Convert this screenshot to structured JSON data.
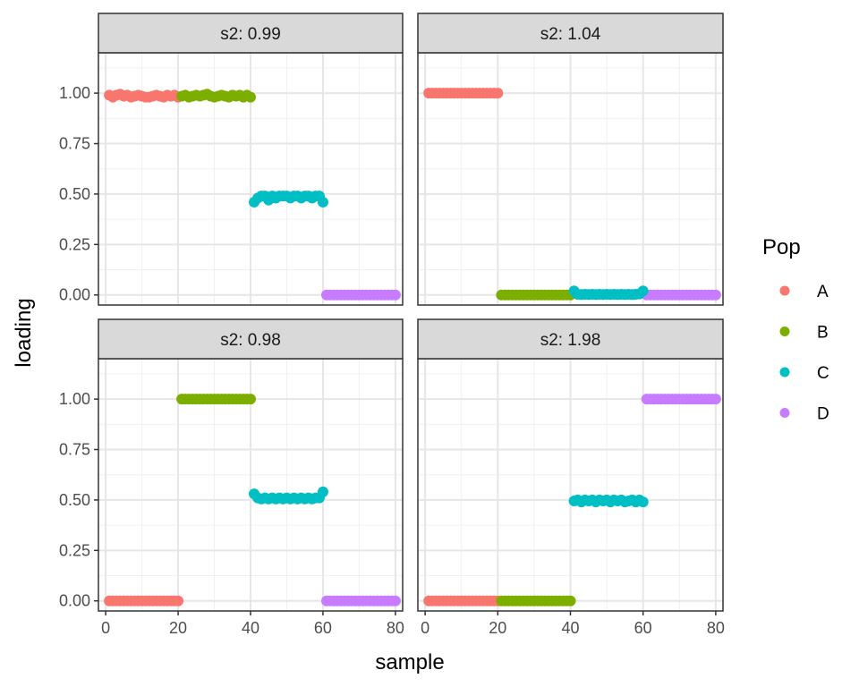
{
  "chart_data": {
    "type": "scatter",
    "xlabel": "sample",
    "ylabel": "loading",
    "xlim": [
      -2,
      82
    ],
    "ylim": [
      -0.05,
      1.2
    ],
    "x_ticks": [
      0,
      20,
      40,
      60,
      80
    ],
    "x_tick_labels": [
      "0",
      "20",
      "40",
      "60",
      "80"
    ],
    "y_ticks": [
      0,
      0.25,
      0.5,
      0.75,
      1.0
    ],
    "y_tick_labels": [
      "0.00",
      "0.25",
      "0.50",
      "0.75",
      "1.00"
    ],
    "legend": {
      "title": "Pop",
      "position": "right",
      "entries": [
        {
          "label": "A",
          "color": "#F8766D"
        },
        {
          "label": "B",
          "color": "#7CAE00"
        },
        {
          "label": "C",
          "color": "#00BFC4"
        },
        {
          "label": "D",
          "color": "#C77CFF"
        }
      ]
    },
    "panels": [
      {
        "strip": "s2: 0.99",
        "series": [
          {
            "name": "A",
            "x_start": 1,
            "x_end": 20,
            "values": [
              0.99,
              0.98,
              0.99,
              0.995,
              0.985,
              0.99,
              0.98,
              0.985,
              0.99,
              0.985,
              0.98,
              0.98,
              0.985,
              0.99,
              0.985,
              0.98,
              0.99,
              0.985,
              0.99,
              0.98
            ]
          },
          {
            "name": "B",
            "x_start": 21,
            "x_end": 40,
            "values": [
              0.985,
              0.99,
              0.98,
              0.985,
              0.99,
              0.985,
              0.99,
              0.995,
              0.985,
              0.98,
              0.985,
              0.99,
              0.985,
              0.98,
              0.99,
              0.985,
              0.99,
              0.98,
              0.99,
              0.98
            ]
          },
          {
            "name": "C",
            "x_start": 41,
            "x_end": 60,
            "values": [
              0.46,
              0.48,
              0.49,
              0.49,
              0.47,
              0.49,
              0.48,
              0.49,
              0.49,
              0.49,
              0.48,
              0.49,
              0.49,
              0.48,
              0.49,
              0.49,
              0.48,
              0.49,
              0.49,
              0.46
            ]
          },
          {
            "name": "D",
            "x_start": 61,
            "x_end": 80,
            "values": [
              0,
              0,
              0,
              0,
              0,
              0,
              0,
              0,
              0,
              0,
              0,
              0,
              0,
              0,
              0,
              0,
              0,
              0,
              0,
              0
            ]
          }
        ]
      },
      {
        "strip": "s2: 1.04",
        "series": [
          {
            "name": "A",
            "x_start": 1,
            "x_end": 20,
            "values": [
              1,
              1,
              1,
              1,
              1,
              1,
              1,
              1,
              1,
              1,
              1,
              1,
              1,
              1,
              1,
              1,
              1,
              1,
              1,
              1
            ]
          },
          {
            "name": "B",
            "x_start": 21,
            "x_end": 40,
            "values": [
              0,
              0,
              0,
              0,
              0,
              0,
              0,
              0,
              0,
              0,
              0,
              0,
              0,
              0,
              0,
              0,
              0,
              0,
              0,
              0
            ]
          },
          {
            "name": "D",
            "x_start": 61,
            "x_end": 80,
            "values": [
              0,
              0,
              0,
              0,
              0,
              0,
              0,
              0,
              0,
              0,
              0,
              0,
              0,
              0,
              0,
              0,
              0,
              0,
              0,
              0
            ]
          },
          {
            "name": "C",
            "x_start": 41,
            "x_end": 60,
            "values": [
              0.02,
              0.003,
              0.002,
              0.003,
              0.002,
              0.003,
              0.002,
              0.003,
              0.002,
              0.003,
              0.002,
              0.003,
              0.002,
              0.003,
              0.002,
              0.003,
              0.002,
              0.003,
              0.005,
              0.02
            ]
          }
        ]
      },
      {
        "strip": "s2: 0.98",
        "series": [
          {
            "name": "A",
            "x_start": 1,
            "x_end": 20,
            "values": [
              0,
              0,
              0,
              0,
              0,
              0,
              0,
              0,
              0,
              0,
              0,
              0,
              0,
              0,
              0,
              0,
              0,
              0,
              0,
              0
            ]
          },
          {
            "name": "B",
            "x_start": 21,
            "x_end": 40,
            "values": [
              1,
              1,
              1,
              1,
              1,
              1,
              1,
              1,
              1,
              1,
              1,
              1,
              1,
              1,
              1,
              1,
              1,
              1,
              1,
              1
            ]
          },
          {
            "name": "C",
            "x_start": 41,
            "x_end": 60,
            "values": [
              0.53,
              0.51,
              0.505,
              0.51,
              0.505,
              0.51,
              0.505,
              0.51,
              0.505,
              0.51,
              0.505,
              0.51,
              0.505,
              0.51,
              0.505,
              0.51,
              0.505,
              0.51,
              0.51,
              0.54
            ]
          },
          {
            "name": "D",
            "x_start": 61,
            "x_end": 80,
            "values": [
              0,
              0,
              0,
              0,
              0,
              0,
              0,
              0,
              0,
              0,
              0,
              0,
              0,
              0,
              0,
              0,
              0,
              0,
              0,
              0
            ]
          }
        ]
      },
      {
        "strip": "s2: 1.98",
        "series": [
          {
            "name": "A",
            "x_start": 1,
            "x_end": 20,
            "values": [
              0,
              0,
              0,
              0,
              0,
              0,
              0,
              0,
              0,
              0,
              0,
              0,
              0,
              0,
              0,
              0,
              0,
              0,
              0,
              0
            ]
          },
          {
            "name": "B",
            "x_start": 21,
            "x_end": 40,
            "values": [
              0,
              0,
              0,
              0,
              0,
              0,
              0,
              0,
              0,
              0,
              0,
              0,
              0,
              0,
              0,
              0,
              0,
              0,
              0,
              0
            ]
          },
          {
            "name": "C",
            "x_start": 41,
            "x_end": 60,
            "values": [
              0.495,
              0.5,
              0.49,
              0.5,
              0.495,
              0.5,
              0.49,
              0.5,
              0.495,
              0.5,
              0.49,
              0.5,
              0.495,
              0.5,
              0.49,
              0.495,
              0.5,
              0.49,
              0.5,
              0.49
            ]
          },
          {
            "name": "D",
            "x_start": 61,
            "x_end": 80,
            "values": [
              1,
              1,
              1,
              1,
              1,
              1,
              1,
              1,
              1,
              1,
              1,
              1,
              1,
              1,
              1,
              1,
              1,
              1,
              1,
              1
            ]
          }
        ]
      }
    ]
  }
}
